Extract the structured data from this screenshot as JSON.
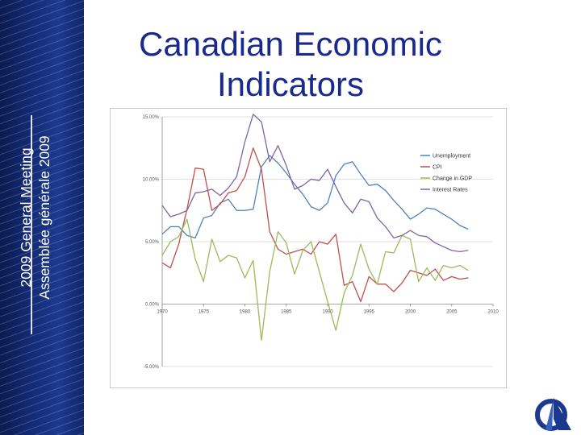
{
  "slide": {
    "title_line1": "Canadian Economic",
    "title_line2": "Indicators",
    "sidebar_line1": "2009 General Meeting",
    "sidebar_line2": "Assemblée générale 2009"
  },
  "colors": {
    "title": "#1a2a8c",
    "sidebar": "#132a74"
  },
  "chart_data": {
    "type": "line",
    "x": [
      1970,
      1971,
      1972,
      1973,
      1974,
      1975,
      1976,
      1977,
      1978,
      1979,
      1980,
      1981,
      1982,
      1983,
      1984,
      1985,
      1986,
      1987,
      1988,
      1989,
      1990,
      1991,
      1992,
      1993,
      1994,
      1995,
      1996,
      1997,
      1998,
      1999,
      2000,
      2001,
      2002,
      2003,
      2004,
      2005,
      2006,
      2007
    ],
    "xticks": [
      "1970",
      "1975",
      "1980",
      "1985",
      "1990",
      "1995",
      "2000",
      "2005",
      "2010"
    ],
    "xlim": [
      1970,
      2010
    ],
    "yticks": [
      "15.00%",
      "10.00%",
      "5.00%",
      "0.00%",
      "-5.00%"
    ],
    "ylim": [
      -5,
      15
    ],
    "grid": true,
    "legend_position": "right",
    "series": [
      {
        "name": "Unemployment",
        "color": "#4f81bd",
        "values": [
          5.6,
          6.2,
          6.2,
          5.5,
          5.3,
          6.9,
          7.1,
          8.1,
          8.4,
          7.5,
          7.5,
          7.6,
          11.0,
          11.9,
          11.3,
          10.5,
          9.6,
          8.8,
          7.8,
          7.5,
          8.1,
          10.3,
          11.2,
          11.4,
          10.4,
          9.5,
          9.6,
          9.1,
          8.3,
          7.6,
          6.8,
          7.2,
          7.7,
          7.6,
          7.2,
          6.8,
          6.3,
          6.0
        ]
      },
      {
        "name": "CPI",
        "color": "#c0504d",
        "values": [
          3.3,
          2.9,
          4.8,
          7.6,
          10.9,
          10.8,
          7.5,
          8.0,
          8.9,
          9.1,
          10.2,
          12.5,
          10.8,
          5.8,
          4.4,
          4.0,
          4.2,
          4.4,
          4.0,
          5.0,
          4.8,
          5.6,
          1.5,
          1.8,
          0.2,
          2.2,
          1.6,
          1.6,
          1.0,
          1.7,
          2.7,
          2.5,
          2.3,
          2.8,
          1.9,
          2.2,
          2.0,
          2.1
        ]
      },
      {
        "name": "Change in GDP",
        "color": "#9bbb59",
        "values": [
          3.9,
          5.0,
          5.4,
          6.8,
          3.6,
          1.8,
          5.2,
          3.4,
          3.9,
          3.7,
          2.1,
          3.5,
          -2.9,
          2.6,
          5.8,
          4.9,
          2.4,
          4.3,
          5.0,
          2.6,
          0.2,
          -2.1,
          0.9,
          2.3,
          4.8,
          2.8,
          1.6,
          4.2,
          4.1,
          5.5,
          5.2,
          1.8,
          2.9,
          1.9,
          3.1,
          2.9,
          3.1,
          2.7
        ]
      },
      {
        "name": "Interest Rates",
        "color": "#8064a2",
        "values": [
          7.9,
          7.0,
          7.2,
          7.5,
          8.9,
          9.0,
          9.2,
          8.7,
          9.3,
          10.2,
          13.0,
          15.2,
          14.6,
          11.4,
          12.7,
          11.1,
          9.2,
          9.5,
          10.0,
          9.9,
          10.8,
          9.4,
          8.1,
          7.3,
          8.4,
          8.2,
          6.9,
          6.2,
          5.3,
          5.5,
          5.9,
          5.5,
          5.4,
          4.9,
          4.6,
          4.3,
          4.2,
          4.3
        ]
      }
    ]
  }
}
